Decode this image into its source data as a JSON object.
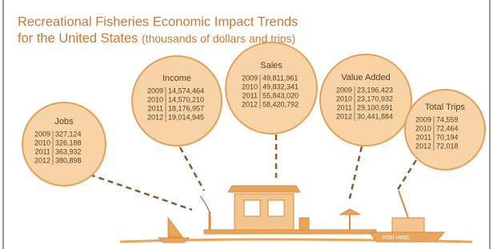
{
  "title": [
    "Recreational Fisheries Economic Impact Trends",
    "for the United States"
  ],
  "subtitle": "(thousands of dollars and trips)",
  "panels": [
    {
      "label": "Jobs",
      "rows": [
        [
          "2009",
          "327,124"
        ],
        [
          "2010",
          "326,188"
        ],
        [
          "2011",
          "363,932"
        ],
        [
          "2012",
          "380,898"
        ]
      ]
    },
    {
      "label": "Income",
      "rows": [
        [
          "2009",
          "14,574,464"
        ],
        [
          "2010",
          "14,570,210"
        ],
        [
          "2011",
          "18,176,957"
        ],
        [
          "2012",
          "19,014,945"
        ]
      ]
    },
    {
      "label": "Sales",
      "rows": [
        [
          "2009",
          "49,811,961"
        ],
        [
          "2010",
          "49,832,341"
        ],
        [
          "2011",
          "55,843,020"
        ],
        [
          "2012",
          "58,420,792"
        ]
      ]
    },
    {
      "label": "Value Added",
      "rows": [
        [
          "2009",
          "23,196,423"
        ],
        [
          "2010",
          "23,170,932"
        ],
        [
          "2011",
          "29,100,691"
        ],
        [
          "2012",
          "30,441,884"
        ]
      ]
    },
    {
      "label": "Total Trips",
      "rows": [
        [
          "2009",
          "74,559"
        ],
        [
          "2010",
          "72,464"
        ],
        [
          "2011",
          "70,194"
        ],
        [
          "2012",
          "72,018"
        ]
      ]
    }
  ],
  "boat_label": "FOR HIRE"
}
